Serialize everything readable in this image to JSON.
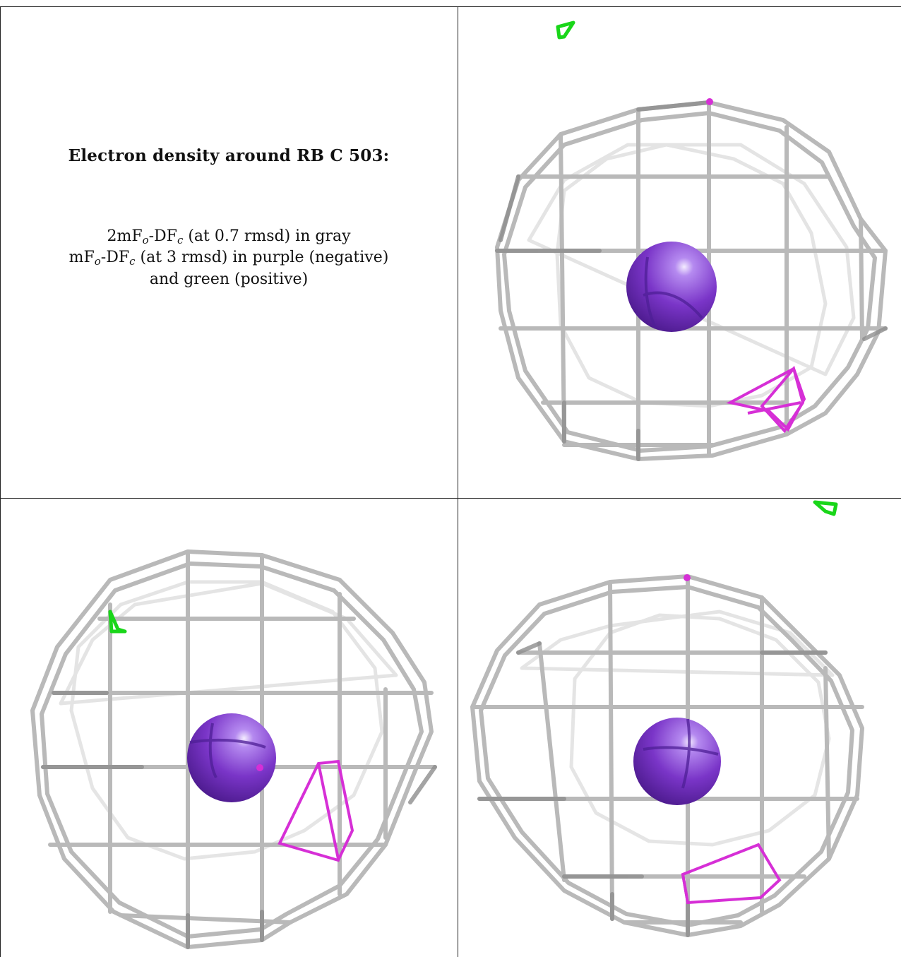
{
  "caption": {
    "title": "Electron density around RB C 503:",
    "map1": {
      "prefix": "2mF",
      "sub_o": "o",
      "mid": "-DF",
      "sub_c": "c",
      "suffix": " (at 0.7 rmsd) in gray"
    },
    "map2": {
      "prefix": "mF",
      "sub_o": "o",
      "mid": "-DF",
      "sub_c": "c",
      "suffix": " (at 3 rmsd) in purple (negative)"
    },
    "map3": "and green (positive)"
  },
  "colors": {
    "mesh_gray": "#b9b9b9",
    "mesh_gray_dark": "#8d8d8d",
    "atom_purple": "#7a35c8",
    "negative_density": "#d62fd6",
    "positive_density": "#19d619"
  }
}
